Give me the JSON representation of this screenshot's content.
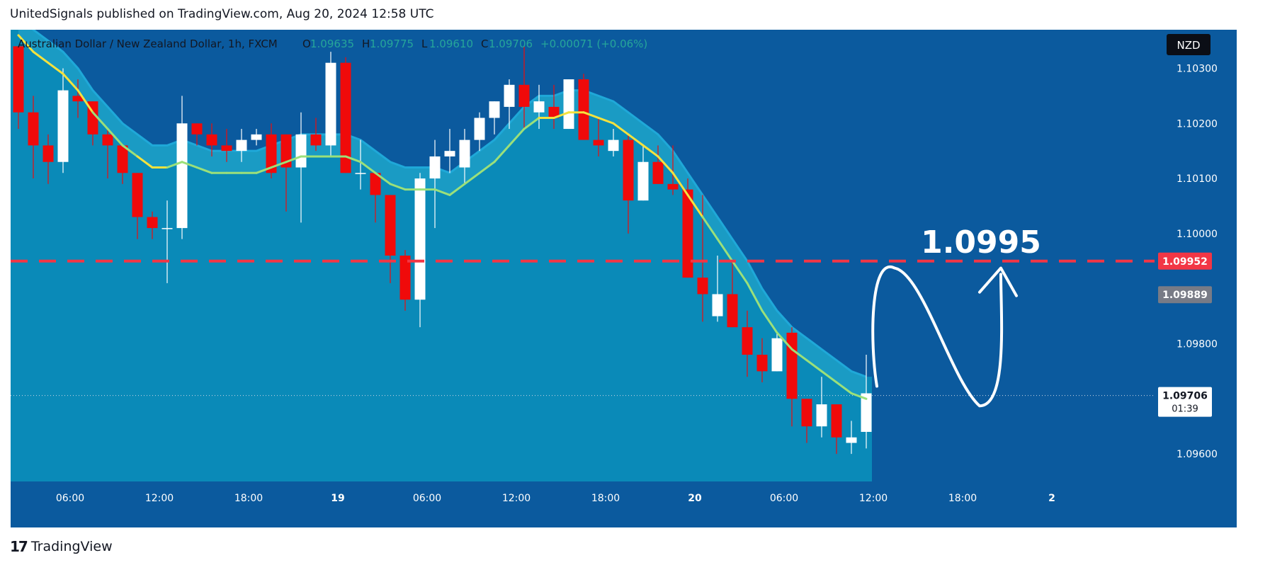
{
  "header": {
    "publish_line": "UnitedSignals published on TradingView.com, Aug 20, 2024 12:58 UTC"
  },
  "footer": {
    "logo_text": "TradingView"
  },
  "colors": {
    "background": "#0b5a9e",
    "area_fill": "#0a8ab8",
    "band_fill": "#1a9bc4",
    "bull": "#ffffff",
    "bear": "#f00a0a",
    "ma_yellow": "#f4e23e",
    "ma_green": "#9be07a",
    "level_line": "#f23645",
    "annotation": "#ffffff",
    "axis_text": "#ffffff"
  },
  "chart_data": {
    "type": "candlestick",
    "symbol_line": {
      "name": "Australian Dollar / New Zealand Dollar, 1h, FXCM",
      "open_label": "O",
      "open": "1.09635",
      "high_label": "H",
      "high": "1.09775",
      "low_label": "L",
      "low": "1.09610",
      "close_label": "C",
      "close": "1.09706",
      "change": "+0.00071 (+0.06%)"
    },
    "currency_badge": "NZD",
    "ylim": [
      1.0955,
      1.1037
    ],
    "yticks": [
      "1.10300",
      "1.10200",
      "1.10100",
      "1.10000",
      "1.09800",
      "1.09600"
    ],
    "ytick_values": [
      1.103,
      1.102,
      1.101,
      1.1,
      1.098,
      1.096
    ],
    "xticks": [
      {
        "label": "06:00",
        "bar": 3
      },
      {
        "label": "12:00",
        "bar": 9
      },
      {
        "label": "18:00",
        "bar": 15
      },
      {
        "label": "19",
        "bar": 21
      },
      {
        "label": "06:00",
        "bar": 27
      },
      {
        "label": "12:00",
        "bar": 33
      },
      {
        "label": "18:00",
        "bar": 39
      },
      {
        "label": "20",
        "bar": 45
      },
      {
        "label": "06:00",
        "bar": 51
      },
      {
        "label": "12:00",
        "bar": 57
      },
      {
        "label": "18:00",
        "bar": 63
      },
      {
        "label": "2",
        "bar": 69
      }
    ],
    "candles": [
      [
        1.1034,
        1.1034,
        1.1019,
        1.1022
      ],
      [
        1.1022,
        1.1025,
        1.101,
        1.1016
      ],
      [
        1.1016,
        1.1018,
        1.1009,
        1.1013
      ],
      [
        1.1013,
        1.103,
        1.1011,
        1.1026
      ],
      [
        1.1025,
        1.1028,
        1.1021,
        1.1024
      ],
      [
        1.1024,
        1.1024,
        1.1016,
        1.1018
      ],
      [
        1.1018,
        1.1019,
        1.101,
        1.1016
      ],
      [
        1.1016,
        1.1016,
        1.1009,
        1.1011
      ],
      [
        1.1011,
        1.1011,
        1.0999,
        1.1003
      ],
      [
        1.1003,
        1.1004,
        1.0999,
        1.1001
      ],
      [
        1.1001,
        1.1006,
        1.0991,
        1.1001
      ],
      [
        1.1001,
        1.1025,
        1.0999,
        1.102
      ],
      [
        1.102,
        1.102,
        1.1016,
        1.1018
      ],
      [
        1.1018,
        1.102,
        1.1014,
        1.1016
      ],
      [
        1.1016,
        1.1019,
        1.1013,
        1.1015
      ],
      [
        1.1015,
        1.1019,
        1.1013,
        1.1017
      ],
      [
        1.1017,
        1.1019,
        1.1016,
        1.1018
      ],
      [
        1.1018,
        1.102,
        1.101,
        1.1011
      ],
      [
        1.1018,
        1.1018,
        1.1004,
        1.1012
      ],
      [
        1.1012,
        1.1022,
        1.1002,
        1.1018
      ],
      [
        1.1018,
        1.1021,
        1.1015,
        1.1016
      ],
      [
        1.1016,
        1.1033,
        1.1014,
        1.1031
      ],
      [
        1.1031,
        1.1032,
        1.1011,
        1.1011
      ],
      [
        1.1011,
        1.1017,
        1.1008,
        1.1011
      ],
      [
        1.1011,
        1.1011,
        1.1002,
        1.1007
      ],
      [
        1.1007,
        1.1007,
        1.0991,
        1.0996
      ],
      [
        1.0996,
        1.0997,
        1.0986,
        1.0988
      ],
      [
        1.0988,
        1.1011,
        1.0983,
        1.101
      ],
      [
        1.101,
        1.1017,
        1.1001,
        1.1014
      ],
      [
        1.1014,
        1.1019,
        1.1011,
        1.1015
      ],
      [
        1.1012,
        1.1019,
        1.1009,
        1.1017
      ],
      [
        1.1017,
        1.1022,
        1.1015,
        1.1021
      ],
      [
        1.1021,
        1.1024,
        1.1018,
        1.1024
      ],
      [
        1.1023,
        1.1028,
        1.1019,
        1.1027
      ],
      [
        1.1027,
        1.1034,
        1.1019,
        1.1023
      ],
      [
        1.1022,
        1.1027,
        1.1019,
        1.1024
      ],
      [
        1.1023,
        1.1027,
        1.1019,
        1.1021
      ],
      [
        1.1019,
        1.1028,
        1.1019,
        1.1028
      ],
      [
        1.1028,
        1.1029,
        1.1017,
        1.1017
      ],
      [
        1.1017,
        1.1021,
        1.1014,
        1.1016
      ],
      [
        1.1015,
        1.1019,
        1.1014,
        1.1017
      ],
      [
        1.1017,
        1.1018,
        1.1,
        1.1006
      ],
      [
        1.1006,
        1.1016,
        1.1006,
        1.1013
      ],
      [
        1.1013,
        1.1016,
        1.1009,
        1.1009
      ],
      [
        1.1009,
        1.1016,
        1.1007,
        1.1008
      ],
      [
        1.1008,
        1.101,
        1.0992,
        1.0992
      ],
      [
        1.0992,
        1.1007,
        1.0984,
        1.0989
      ],
      [
        1.0985,
        1.0996,
        1.0984,
        1.0989
      ],
      [
        1.0989,
        1.0995,
        1.0983,
        1.0983
      ],
      [
        1.0983,
        1.0986,
        1.0974,
        1.0978
      ],
      [
        1.0978,
        1.0981,
        1.0973,
        1.0975
      ],
      [
        1.0975,
        1.0982,
        1.0975,
        1.0981
      ],
      [
        1.0982,
        1.0983,
        1.0965,
        1.097
      ],
      [
        1.097,
        1.097,
        1.0962,
        1.0965
      ],
      [
        1.0965,
        1.0974,
        1.0963,
        1.0969
      ],
      [
        1.0969,
        1.0969,
        1.096,
        1.0963
      ],
      [
        1.0962,
        1.0966,
        1.096,
        1.0963
      ],
      [
        1.0964,
        1.0978,
        1.0961,
        1.0971
      ]
    ],
    "ma_values": [
      1.1036,
      1.1033,
      1.1031,
      1.1029,
      1.1026,
      1.1022,
      1.1019,
      1.1016,
      1.1014,
      1.1012,
      1.1012,
      1.1013,
      1.1012,
      1.1011,
      1.1011,
      1.1011,
      1.1011,
      1.1012,
      1.1013,
      1.1014,
      1.1014,
      1.1014,
      1.1014,
      1.1013,
      1.1011,
      1.1009,
      1.1008,
      1.1008,
      1.1008,
      1.1007,
      1.1009,
      1.1011,
      1.1013,
      1.1016,
      1.1019,
      1.1021,
      1.1021,
      1.1022,
      1.1022,
      1.1021,
      1.102,
      1.1018,
      1.1016,
      1.1014,
      1.1011,
      1.1007,
      1.1003,
      1.0999,
      1.0995,
      1.0991,
      1.0986,
      1.0982,
      1.0979,
      1.0977,
      1.0975,
      1.0973,
      1.0971,
      1.097
    ],
    "level": {
      "value": 1.0995,
      "label": "1.0995",
      "badge": "1.09952"
    },
    "secondary_badge": {
      "value": 1.09889,
      "label": "1.09889"
    },
    "last_price": {
      "value": 1.09706,
      "label": "1.09706",
      "countdown": "01:39"
    }
  }
}
